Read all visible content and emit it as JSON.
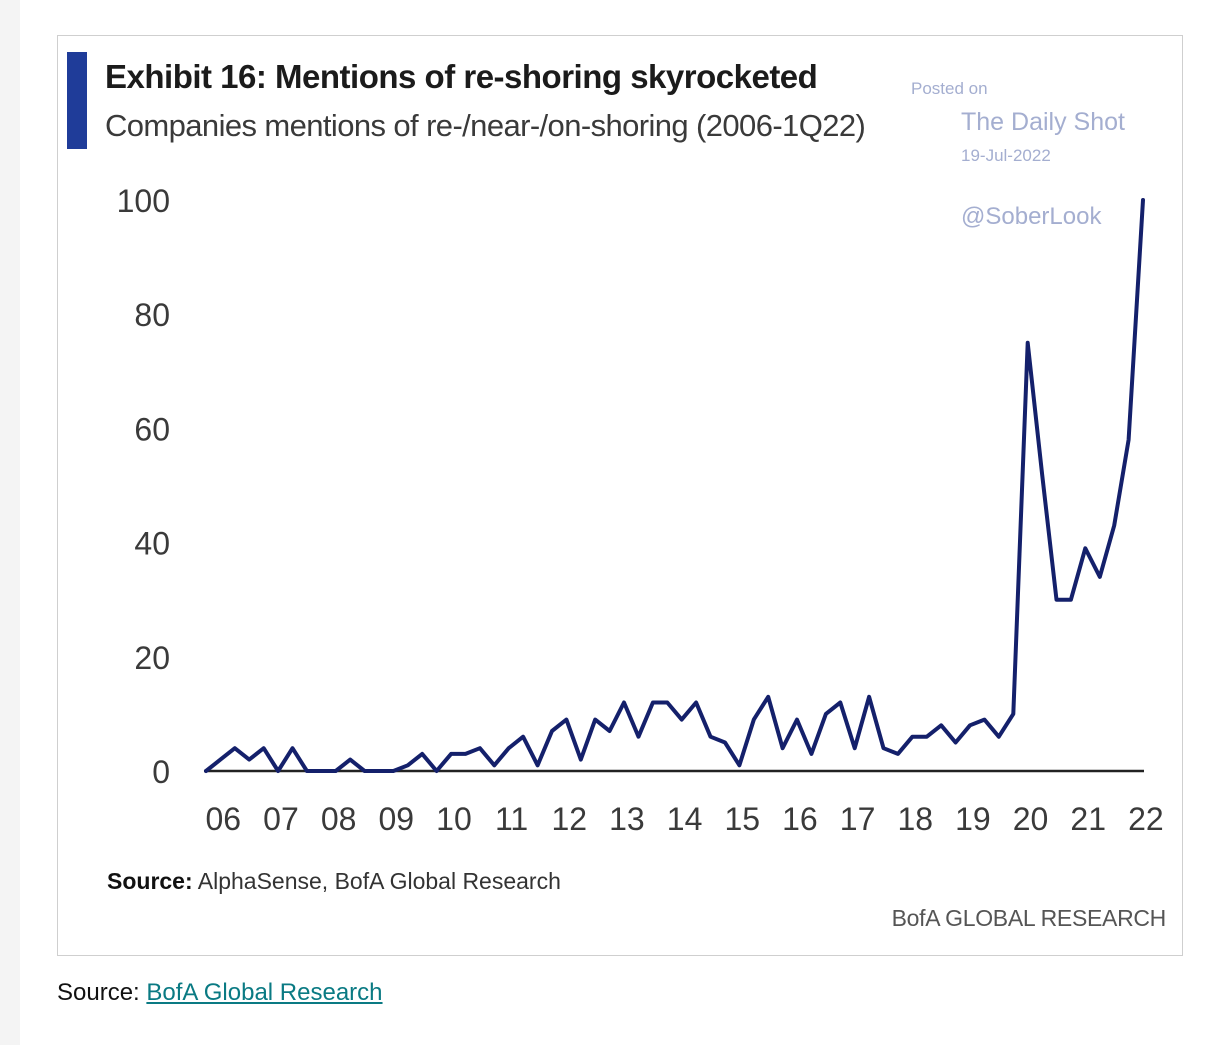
{
  "exhibit": {
    "title": "Exhibit 16: Mentions of re-shoring skyrocketed",
    "subtitle": "Companies mentions of re-/near-/on-shoring (2006-1Q22)",
    "source_label": "Source:",
    "source_text": "AlphaSense, BofA Global Research",
    "brand": "BofA GLOBAL RESEARCH"
  },
  "watermark": {
    "posted_on": "Posted on",
    "name": "The Daily Shot",
    "date": "19-Jul-2022",
    "handle": "@SoberLook"
  },
  "page_source": {
    "label": "Source:",
    "link_text": "BofA Global Research"
  },
  "colors": {
    "line": "#14206b",
    "accent": "#1f3c99",
    "axis": "#222222",
    "watermark": "#a4aed0",
    "link": "#0a7a83"
  },
  "chart_data": {
    "type": "line",
    "title": "Exhibit 16: Mentions of re-shoring skyrocketed",
    "subtitle": "Companies mentions of re-/near-/on-shoring (2006-1Q22)",
    "xlabel": "",
    "ylabel": "",
    "ylim": [
      0,
      100
    ],
    "xlim": [
      2006,
      2022.6
    ],
    "grid": false,
    "yticks": [
      "0",
      "20",
      "40",
      "60",
      "80",
      "100"
    ],
    "xticks": [
      {
        "value": 2006,
        "label": "06"
      },
      {
        "value": 2007,
        "label": "07"
      },
      {
        "value": 2008,
        "label": "08"
      },
      {
        "value": 2009,
        "label": "09"
      },
      {
        "value": 2010,
        "label": "10"
      },
      {
        "value": 2011,
        "label": "11"
      },
      {
        "value": 2012,
        "label": "12"
      },
      {
        "value": 2013,
        "label": "13"
      },
      {
        "value": 2014,
        "label": "14"
      },
      {
        "value": 2015,
        "label": "15"
      },
      {
        "value": 2016,
        "label": "16"
      },
      {
        "value": 2017,
        "label": "17"
      },
      {
        "value": 2018,
        "label": "18"
      },
      {
        "value": 2019,
        "label": "19"
      },
      {
        "value": 2020,
        "label": "20"
      },
      {
        "value": 2021,
        "label": "21"
      },
      {
        "value": 2022,
        "label": "22"
      }
    ],
    "series": [
      {
        "x": [
          2006.0,
          2006.25,
          2006.5,
          2006.75,
          2007.0,
          2007.25,
          2007.5,
          2007.75,
          2008.0,
          2008.25,
          2008.5,
          2008.75,
          2009.0,
          2009.25,
          2009.5,
          2009.75,
          2010.0,
          2010.25,
          2010.5,
          2010.75,
          2011.0,
          2011.25,
          2011.5,
          2011.75,
          2012.0,
          2012.25,
          2012.5,
          2012.75,
          2013.0,
          2013.25,
          2013.5,
          2013.75,
          2014.0,
          2014.25,
          2014.5,
          2014.75,
          2015.0,
          2015.25,
          2015.5,
          2015.75,
          2016.0,
          2016.25,
          2016.5,
          2016.75,
          2017.0,
          2017.25,
          2017.5,
          2017.75,
          2018.0,
          2018.25,
          2018.5,
          2018.75,
          2019.0,
          2019.25,
          2019.5,
          2019.75,
          2020.0,
          2020.25,
          2020.5,
          2020.75,
          2021.0,
          2021.25,
          2021.5,
          2021.75,
          2022.0,
          2022.25
        ],
        "values": [
          0,
          2,
          4,
          2,
          4,
          0,
          4,
          0,
          0,
          0,
          2,
          0,
          0,
          0,
          1,
          3,
          0,
          3,
          3,
          4,
          1,
          4,
          6,
          1,
          7,
          9,
          2,
          9,
          7,
          12,
          6,
          12,
          12,
          9,
          12,
          6,
          5,
          1,
          9,
          13,
          4,
          9,
          3,
          10,
          12,
          4,
          13,
          4,
          3,
          6,
          6,
          8,
          5,
          8,
          9,
          6,
          10,
          75,
          52,
          30,
          30,
          39,
          34,
          43,
          58,
          100
        ]
      }
    ]
  }
}
